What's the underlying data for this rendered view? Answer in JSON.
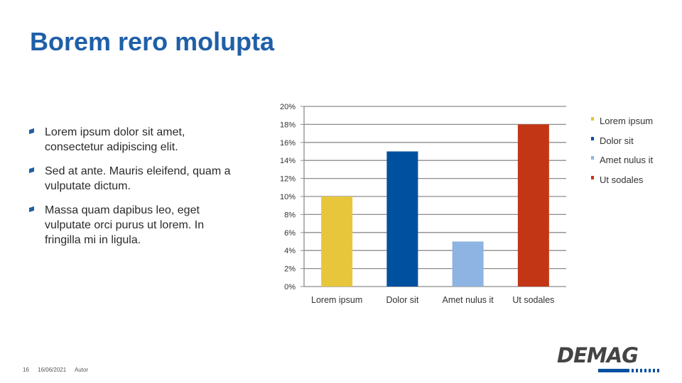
{
  "slide": {
    "title": "Borem rero molupta",
    "bullets": [
      "Lorem ipsum dolor sit amet, consectetur adipiscing elit.",
      "Sed at ante. Mauris eleifend, quam a vulputate dictum.",
      "Massa quam dapibus leo, eget vulputate orci purus ut lorem. In fringilla mi in ligula."
    ]
  },
  "chart_data": {
    "type": "bar",
    "categories": [
      "Lorem ipsum",
      "Dolor sit",
      "Amet nulus it",
      "Ut sodales"
    ],
    "values": [
      10,
      15,
      5,
      18
    ],
    "colors": [
      "#e7c63b",
      "#0050a0",
      "#8db4e2",
      "#c23616"
    ],
    "yticks": [
      "0%",
      "2%",
      "4%",
      "6%",
      "8%",
      "10%",
      "12%",
      "14%",
      "16%",
      "18%",
      "20%"
    ],
    "ylim": [
      0,
      20
    ],
    "grid": true,
    "legend": {
      "position": "right",
      "entries": [
        "Lorem ipsum",
        "Dolor sit",
        "Amet nulus it",
        "Ut sodales"
      ]
    }
  },
  "footer": {
    "page": "16",
    "date": "16/06/2021",
    "author": "Autor"
  },
  "logo": {
    "text": "DEMAG",
    "icon": "demag-logo-icon"
  }
}
